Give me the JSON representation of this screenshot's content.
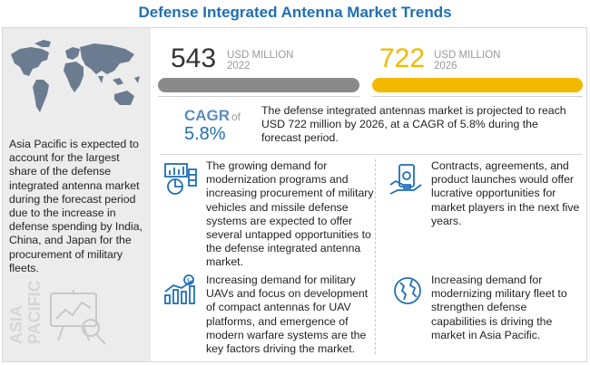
{
  "title": "Defense Integrated Antenna Market Trends",
  "left_panel": {
    "map_icon": "world-map-icon",
    "description": "Asia Pacific is expected to account for the largest share of the defense integrated antenna market during the forecast period due to the increase in defense spending by India, China, and Japan for the procurement of military fleets.",
    "region_line1": "ASIA",
    "region_line2": "PACIFIC",
    "region_icon": "analytics-board-icon"
  },
  "stats": [
    {
      "value": "543",
      "unit": "USD MILLION",
      "year": "2022",
      "color": "#333333"
    },
    {
      "value": "722",
      "unit": "USD MILLION",
      "year": "2026",
      "color": "#f3b800"
    }
  ],
  "cagr": {
    "label": "CAGR",
    "of": "of",
    "value": "5.8%",
    "description": "The defense integrated antennas market is projected to reach USD 722 million by 2026, at a CAGR of 5.8% during the forecast period."
  },
  "blocks": [
    {
      "icon": "chart-analysis-icon",
      "text": "The growing demand for modernization programs and increasing procurement of military vehicles and missile defense systems are expected to offer several untapped opportunities to the defense integrated antenna market."
    },
    {
      "icon": "money-hand-icon",
      "text": "Contracts, agreements, and product launches would offer lucrative opportunities for market players in the next five years."
    },
    {
      "icon": "growth-bar-chart-icon",
      "text": "Increasing demand for military UAVs and focus on development of compact antennas for UAV platforms, and emergence of modern warfare systems are the key factors driving the market."
    },
    {
      "icon": "globe-icon",
      "text": "Increasing demand for modernizing military fleet to strengthen defense capabilities is driving the market in Asia Pacific."
    }
  ],
  "colors": {
    "title": "#1f6fb6",
    "accent": "#f3b800",
    "bar_gray": "#8a8a8a",
    "cagr": "#5a8cc0"
  }
}
